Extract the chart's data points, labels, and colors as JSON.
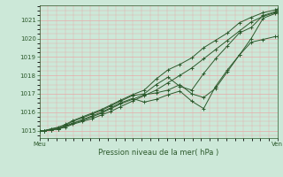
{
  "bg_color": "#cce8d8",
  "grid_color": "#e8aaaa",
  "line_color": "#2d5a2d",
  "xlabel": "Pression niveau de la mer( hPa )",
  "xlabel_color": "#2d5a2d",
  "xtick_left_label": "Meu",
  "xtick_right_label": "Ven",
  "ylim": [
    1014.6,
    1021.8
  ],
  "yticks": [
    1015,
    1016,
    1017,
    1018,
    1019,
    1020,
    1021
  ],
  "figsize": [
    3.2,
    2.0
  ],
  "dpi": 100,
  "lines": [
    {
      "x": [
        0.0,
        0.02,
        0.05,
        0.08,
        0.11,
        0.14,
        0.18,
        0.22,
        0.26,
        0.3,
        0.34,
        0.39,
        0.44,
        0.49,
        0.54,
        0.59,
        0.64,
        0.69,
        0.74,
        0.79,
        0.84,
        0.89,
        0.94,
        0.99,
        1.0
      ],
      "y": [
        1015.0,
        1015.0,
        1015.05,
        1015.1,
        1015.2,
        1015.35,
        1015.5,
        1015.65,
        1015.85,
        1016.05,
        1016.3,
        1016.6,
        1016.9,
        1017.2,
        1017.6,
        1018.0,
        1018.4,
        1018.9,
        1019.4,
        1019.9,
        1020.4,
        1020.9,
        1021.2,
        1021.4,
        1021.5
      ]
    },
    {
      "x": [
        0.0,
        0.02,
        0.05,
        0.08,
        0.11,
        0.14,
        0.18,
        0.22,
        0.26,
        0.3,
        0.34,
        0.39,
        0.44,
        0.49,
        0.54,
        0.59,
        0.64,
        0.69,
        0.74,
        0.79,
        0.84,
        0.89,
        0.94,
        0.99,
        1.0
      ],
      "y": [
        1015.0,
        1015.0,
        1015.05,
        1015.1,
        1015.25,
        1015.4,
        1015.55,
        1015.75,
        1015.95,
        1016.2,
        1016.45,
        1016.7,
        1016.95,
        1017.05,
        1017.2,
        1017.5,
        1017.0,
        1016.8,
        1017.3,
        1018.2,
        1019.1,
        1019.8,
        1019.95,
        1020.1,
        1020.1
      ]
    },
    {
      "x": [
        0.0,
        0.02,
        0.05,
        0.08,
        0.11,
        0.14,
        0.18,
        0.22,
        0.26,
        0.3,
        0.34,
        0.39,
        0.44,
        0.49,
        0.54,
        0.59,
        0.64,
        0.69,
        0.74,
        0.79,
        0.84,
        0.89,
        0.94,
        0.99,
        1.0
      ],
      "y": [
        1015.0,
        1015.0,
        1015.05,
        1015.1,
        1015.25,
        1015.4,
        1015.6,
        1015.8,
        1016.0,
        1016.25,
        1016.5,
        1016.75,
        1016.55,
        1016.7,
        1016.95,
        1017.15,
        1016.6,
        1016.2,
        1017.4,
        1018.3,
        1019.1,
        1020.0,
        1021.1,
        1021.35,
        1021.4
      ]
    },
    {
      "x": [
        0.0,
        0.02,
        0.05,
        0.08,
        0.11,
        0.14,
        0.18,
        0.22,
        0.26,
        0.3,
        0.34,
        0.39,
        0.44,
        0.49,
        0.54,
        0.59,
        0.64,
        0.69,
        0.74,
        0.79,
        0.84,
        0.89,
        0.94,
        0.99,
        1.0
      ],
      "y": [
        1015.0,
        1015.0,
        1015.1,
        1015.15,
        1015.3,
        1015.5,
        1015.7,
        1015.9,
        1016.1,
        1016.35,
        1016.6,
        1016.9,
        1017.0,
        1017.5,
        1017.9,
        1017.4,
        1017.2,
        1018.1,
        1018.9,
        1019.6,
        1020.3,
        1020.6,
        1021.25,
        1021.45,
        1021.5
      ]
    },
    {
      "x": [
        0.0,
        0.02,
        0.05,
        0.08,
        0.11,
        0.14,
        0.18,
        0.22,
        0.26,
        0.3,
        0.34,
        0.39,
        0.44,
        0.49,
        0.54,
        0.59,
        0.64,
        0.69,
        0.74,
        0.79,
        0.84,
        0.89,
        0.94,
        0.99,
        1.0
      ],
      "y": [
        1015.0,
        1015.0,
        1015.1,
        1015.2,
        1015.35,
        1015.55,
        1015.75,
        1015.95,
        1016.15,
        1016.4,
        1016.65,
        1016.95,
        1017.2,
        1017.8,
        1018.3,
        1018.6,
        1018.95,
        1019.5,
        1019.9,
        1020.3,
        1020.85,
        1021.15,
        1021.4,
        1021.55,
        1021.6
      ]
    }
  ]
}
